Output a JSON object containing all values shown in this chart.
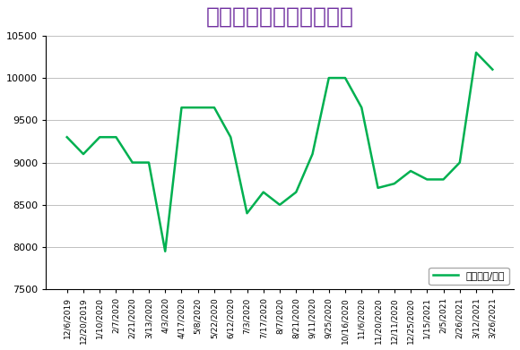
{
  "title": "二乙醇胺市场价格走势图",
  "title_color": "#7030A0",
  "legend_label": "价格（元/吨）",
  "line_color": "#00B050",
  "background_color": "#FFFFFF",
  "ylim": [
    7500,
    10500
  ],
  "yticks": [
    7500,
    8000,
    8500,
    9000,
    9500,
    10000,
    10500
  ],
  "dates": [
    "12/6/2019",
    "12/20/2019",
    "1/10/2020",
    "2/7/2020",
    "2/21/2020",
    "3/13/2020",
    "4/3/2020",
    "4/17/2020",
    "5/8/2020",
    "5/22/2020",
    "6/12/2020",
    "7/3/2020",
    "7/17/2020",
    "8/7/2020",
    "8/21/2020",
    "9/11/2020",
    "9/25/2020",
    "10/16/2020",
    "11/6/2020",
    "11/20/2020",
    "12/11/2020",
    "12/25/2020",
    "1/15/2021",
    "2/5/2021",
    "2/26/2021",
    "3/12/2021",
    "3/26/2021"
  ],
  "values": [
    9300,
    9100,
    9300,
    9300,
    9000,
    9000,
    7950,
    9650,
    9650,
    9650,
    9300,
    8400,
    8650,
    8500,
    8650,
    9100,
    10000,
    10000,
    9650,
    8700,
    8750,
    8900,
    8800,
    8800,
    9000,
    10300,
    10100
  ]
}
